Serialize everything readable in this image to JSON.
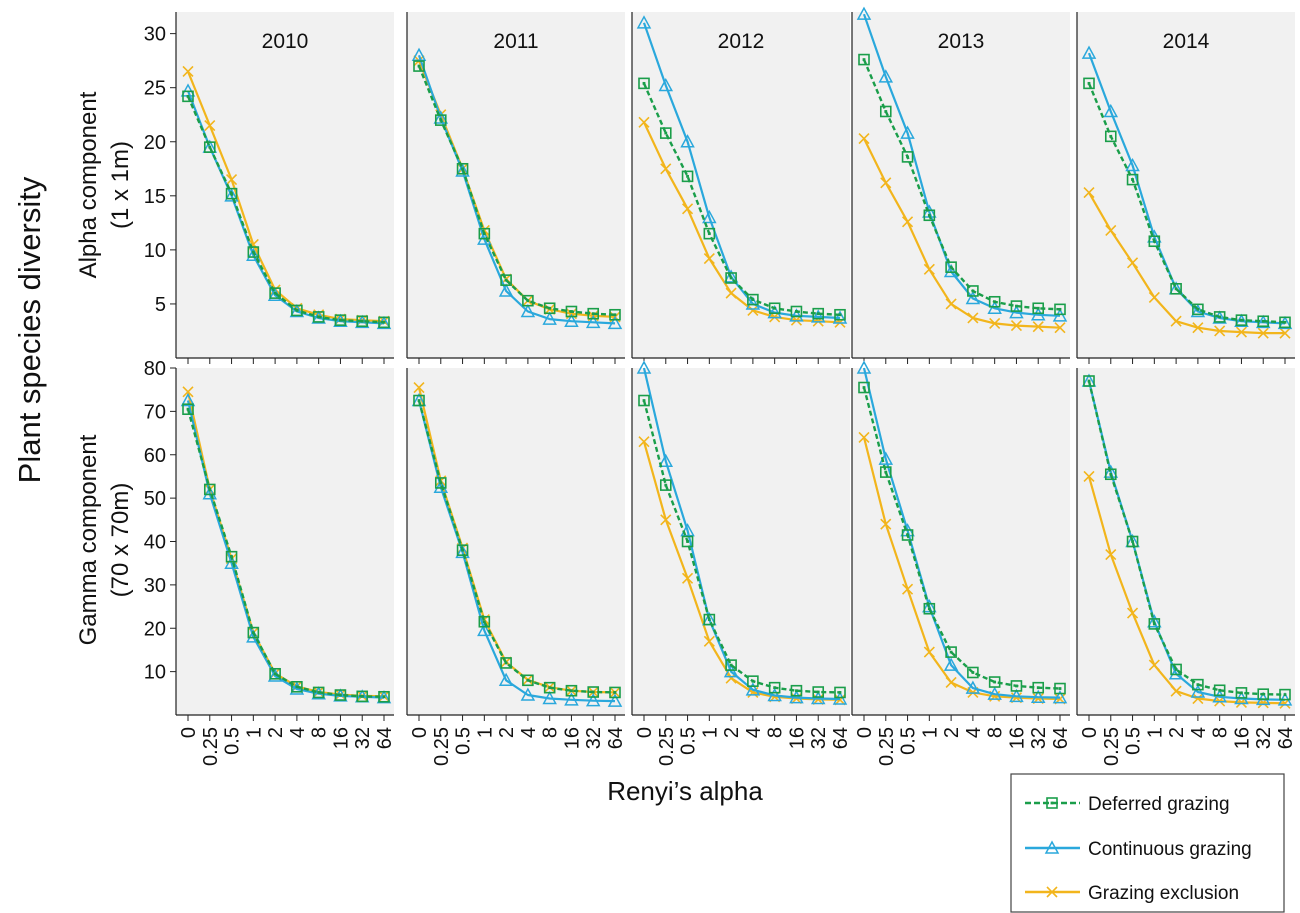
{
  "figure": {
    "ylabel_outer": "Plant species diversity",
    "xlabel": "Renyi’s alpha",
    "row_labels": [
      [
        "Alpha component",
        "(1 x 1m)"
      ],
      [
        "Gamma component",
        "(70 x 70m)"
      ]
    ]
  },
  "legend": [
    {
      "label": "Deferred grazing",
      "color": "#1a9e4a",
      "marker": "square",
      "dash": true
    },
    {
      "label": "Continuous grazing",
      "color": "#2aa8dc",
      "marker": "triangle",
      "dash": false
    },
    {
      "label": "Grazing exclusion",
      "color": "#f2b51c",
      "marker": "x",
      "dash": false
    }
  ],
  "colors": {
    "panel_bg": "#f1f1f1",
    "deferred": "#1a9e4a",
    "continuous": "#2aa8dc",
    "exclusion": "#f2b51c"
  },
  "chart_data": {
    "type": "line",
    "x": [
      "0",
      "0.25",
      "0.5",
      "1",
      "2",
      "4",
      "8",
      "16",
      "32",
      "64"
    ],
    "x_tick_labels": [
      "0",
      "0.25",
      "0.5",
      "1",
      "2",
      "4",
      "8",
      "16",
      "32",
      "64"
    ],
    "years": [
      "2010",
      "2011",
      "2012",
      "2013",
      "2014"
    ],
    "rows": [
      {
        "name": "Alpha component (1 x 1m)",
        "ylim": [
          0,
          32
        ],
        "yticks": [
          5,
          10,
          15,
          20,
          25,
          30
        ],
        "panels": [
          {
            "title": "2010",
            "series": [
              {
                "name": "Deferred grazing",
                "values": [
                  24.2,
                  19.5,
                  15.2,
                  9.8,
                  6.0,
                  4.4,
                  3.8,
                  3.5,
                  3.4,
                  3.3
                ]
              },
              {
                "name": "Continuous grazing",
                "values": [
                  24.7,
                  19.5,
                  15.0,
                  9.5,
                  5.8,
                  4.3,
                  3.7,
                  3.4,
                  3.3,
                  3.2
                ]
              },
              {
                "name": "Grazing exclusion",
                "values": [
                  26.5,
                  21.5,
                  16.5,
                  10.5,
                  6.3,
                  4.6,
                  4.0,
                  3.6,
                  3.5,
                  3.4
                ]
              }
            ]
          },
          {
            "title": "2011",
            "series": [
              {
                "name": "Deferred grazing",
                "values": [
                  27.0,
                  22.0,
                  17.5,
                  11.5,
                  7.2,
                  5.3,
                  4.6,
                  4.3,
                  4.1,
                  4.0
                ]
              },
              {
                "name": "Continuous grazing",
                "values": [
                  28.0,
                  22.2,
                  17.3,
                  11.0,
                  6.2,
                  4.3,
                  3.6,
                  3.4,
                  3.3,
                  3.2
                ]
              },
              {
                "name": "Grazing exclusion",
                "values": [
                  27.5,
                  22.5,
                  17.5,
                  11.8,
                  7.3,
                  5.3,
                  4.5,
                  4.1,
                  3.9,
                  3.8
                ]
              }
            ]
          },
          {
            "title": "2012",
            "series": [
              {
                "name": "Deferred grazing",
                "values": [
                  25.4,
                  20.8,
                  16.8,
                  11.5,
                  7.4,
                  5.4,
                  4.6,
                  4.3,
                  4.1,
                  4.0
                ]
              },
              {
                "name": "Continuous grazing",
                "values": [
                  31.0,
                  25.2,
                  20.0,
                  13.0,
                  7.5,
                  5.0,
                  4.2,
                  3.9,
                  3.8,
                  3.7
                ]
              },
              {
                "name": "Grazing exclusion",
                "values": [
                  21.8,
                  17.5,
                  13.8,
                  9.2,
                  6.0,
                  4.4,
                  3.8,
                  3.5,
                  3.4,
                  3.3
                ]
              }
            ]
          },
          {
            "title": "2013",
            "series": [
              {
                "name": "Deferred grazing",
                "values": [
                  27.6,
                  22.8,
                  18.6,
                  13.2,
                  8.4,
                  6.2,
                  5.2,
                  4.8,
                  4.6,
                  4.5
                ]
              },
              {
                "name": "Continuous grazing",
                "values": [
                  31.8,
                  26.0,
                  20.8,
                  13.5,
                  8.0,
                  5.5,
                  4.6,
                  4.2,
                  4.0,
                  3.9
                ]
              },
              {
                "name": "Grazing exclusion",
                "values": [
                  20.3,
                  16.2,
                  12.6,
                  8.2,
                  5.0,
                  3.7,
                  3.2,
                  3.0,
                  2.9,
                  2.8
                ]
              }
            ]
          },
          {
            "title": "2014",
            "series": [
              {
                "name": "Deferred grazing",
                "values": [
                  25.4,
                  20.5,
                  16.5,
                  10.8,
                  6.4,
                  4.5,
                  3.8,
                  3.5,
                  3.4,
                  3.3
                ]
              },
              {
                "name": "Continuous grazing",
                "values": [
                  28.2,
                  22.8,
                  17.8,
                  11.2,
                  6.4,
                  4.3,
                  3.7,
                  3.4,
                  3.3,
                  3.2
                ]
              },
              {
                "name": "Grazing exclusion",
                "values": [
                  15.3,
                  11.8,
                  8.8,
                  5.6,
                  3.4,
                  2.8,
                  2.5,
                  2.4,
                  2.3,
                  2.3
                ]
              }
            ]
          }
        ]
      },
      {
        "name": "Gamma component (70 x 70m)",
        "ylim": [
          0,
          80
        ],
        "yticks": [
          10,
          20,
          30,
          40,
          50,
          60,
          70,
          80
        ],
        "panels": [
          {
            "title": "",
            "series": [
              {
                "name": "Deferred grazing",
                "values": [
                  70.5,
                  52.0,
                  36.5,
                  19.0,
                  9.5,
                  6.5,
                  5.2,
                  4.6,
                  4.3,
                  4.2
                ]
              },
              {
                "name": "Continuous grazing",
                "values": [
                  72.5,
                  51.0,
                  35.0,
                  18.0,
                  9.0,
                  6.0,
                  4.9,
                  4.4,
                  4.2,
                  4.0
                ]
              },
              {
                "name": "Grazing exclusion",
                "values": [
                  74.5,
                  52.0,
                  36.0,
                  19.0,
                  9.6,
                  6.6,
                  5.3,
                  4.7,
                  4.4,
                  4.3
                ]
              }
            ]
          },
          {
            "title": "",
            "series": [
              {
                "name": "Deferred grazing",
                "values": [
                  72.5,
                  53.5,
                  38.0,
                  21.5,
                  12.0,
                  8.0,
                  6.3,
                  5.6,
                  5.3,
                  5.2
                ]
              },
              {
                "name": "Continuous grazing",
                "values": [
                  72.5,
                  52.5,
                  37.5,
                  19.5,
                  8.0,
                  4.6,
                  3.8,
                  3.5,
                  3.3,
                  3.2
                ]
              },
              {
                "name": "Grazing exclusion",
                "values": [
                  75.5,
                  54.0,
                  38.5,
                  22.0,
                  12.2,
                  8.1,
                  6.4,
                  5.6,
                  5.3,
                  5.2
                ]
              }
            ]
          },
          {
            "title": "",
            "series": [
              {
                "name": "Deferred grazing",
                "values": [
                  72.5,
                  53.0,
                  40.0,
                  22.0,
                  11.5,
                  7.8,
                  6.3,
                  5.6,
                  5.3,
                  5.2
                ]
              },
              {
                "name": "Continuous grazing",
                "values": [
                  80.0,
                  58.5,
                  42.5,
                  22.0,
                  10.0,
                  5.8,
                  4.5,
                  4.0,
                  3.8,
                  3.7
                ]
              },
              {
                "name": "Grazing exclusion",
                "values": [
                  63.0,
                  45.0,
                  31.5,
                  17.0,
                  8.5,
                  5.2,
                  4.2,
                  3.8,
                  3.6,
                  3.5
                ]
              }
            ]
          },
          {
            "title": "",
            "series": [
              {
                "name": "Deferred grazing",
                "values": [
                  75.5,
                  56.0,
                  41.5,
                  24.5,
                  14.5,
                  9.8,
                  7.6,
                  6.7,
                  6.3,
                  6.1
                ]
              },
              {
                "name": "Continuous grazing",
                "values": [
                  80.0,
                  59.0,
                  42.5,
                  25.0,
                  11.5,
                  6.2,
                  4.8,
                  4.3,
                  4.1,
                  4.0
                ]
              },
              {
                "name": "Grazing exclusion",
                "values": [
                  64.0,
                  44.0,
                  29.0,
                  14.5,
                  7.5,
                  5.2,
                  4.3,
                  4.0,
                  3.8,
                  3.7
                ]
              }
            ]
          },
          {
            "title": "",
            "series": [
              {
                "name": "Deferred grazing",
                "values": [
                  77.0,
                  55.5,
                  40.0,
                  21.0,
                  10.5,
                  7.0,
                  5.7,
                  5.1,
                  4.8,
                  4.7
                ]
              },
              {
                "name": "Continuous grazing",
                "values": [
                  77.0,
                  56.0,
                  40.0,
                  21.5,
                  9.5,
                  5.3,
                  4.2,
                  3.8,
                  3.6,
                  3.5
                ]
              },
              {
                "name": "Grazing exclusion",
                "values": [
                  55.0,
                  37.0,
                  23.5,
                  11.5,
                  5.5,
                  3.8,
                  3.2,
                  2.9,
                  2.8,
                  2.7
                ]
              }
            ]
          }
        ]
      }
    ]
  }
}
